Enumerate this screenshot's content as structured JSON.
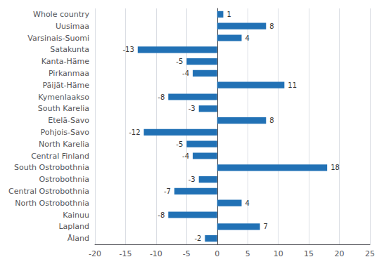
{
  "chart_data": {
    "type": "bar",
    "orientation": "horizontal",
    "categories": [
      "Åland",
      "Lapland",
      "Kainuu",
      "North Ostrobothnia",
      "Central Ostrobothnia",
      "Ostrobothnia",
      "South Ostrobothnia",
      "Central Finland",
      "North Karelia",
      "Pohjois-Savo",
      "Etelä-Savo",
      "South Karelia",
      "Kymenlaakso",
      "Päijät-Häme",
      "Pirkanmaa",
      "Kanta-Häme",
      "Satakunta",
      "Varsinais-Suomi",
      "Uusimaa",
      "Whole country"
    ],
    "values": [
      -2,
      7,
      -8,
      4,
      -7,
      -3,
      18,
      -4,
      -5,
      -12,
      8,
      -3,
      -8,
      11,
      -4,
      -5,
      -13,
      4,
      8,
      1
    ],
    "color": "#2171b5",
    "xlim": [
      -20,
      25
    ],
    "xticks": [
      -20,
      -15,
      -10,
      -5,
      0,
      5,
      10,
      15,
      20,
      25
    ],
    "grid": true,
    "data_labels": true
  }
}
